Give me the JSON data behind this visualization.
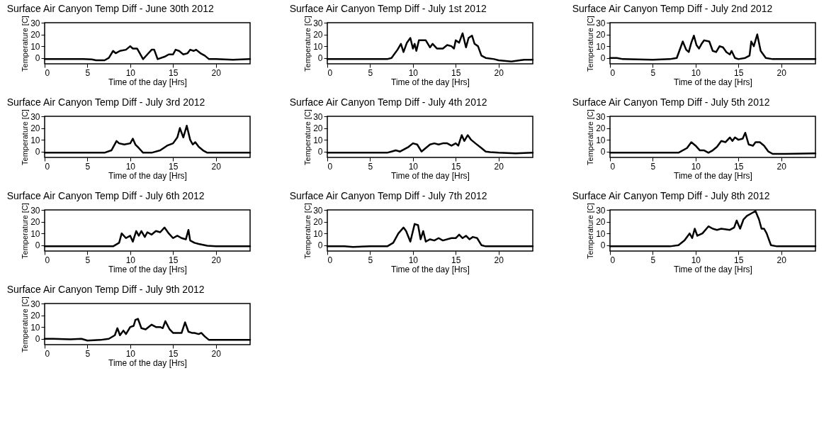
{
  "chart_data": [
    {
      "type": "line",
      "title": "Surface Air Canyon Temp Diff - June 30th 2012",
      "xlabel": "Time of the day [Hrs]",
      "ylabel": "Temperature [C]",
      "xlim": [
        0,
        24
      ],
      "ylim": [
        -5,
        30
      ],
      "xticks": [
        0,
        5,
        10,
        15,
        20
      ],
      "yticks": [
        0,
        10,
        20,
        30
      ],
      "x": [
        0,
        4.5,
        5.5,
        6,
        7,
        7.5,
        8,
        8.3,
        8.8,
        9.5,
        10,
        10.3,
        10.8,
        11.5,
        12,
        12.5,
        12.8,
        13.2,
        14,
        14.5,
        15,
        15.3,
        15.7,
        16.2,
        16.7,
        17,
        17.4,
        17.7,
        18.2,
        18.7,
        19.2,
        20,
        22,
        24
      ],
      "series": [
        {
          "color": "#000000",
          "values": [
            -1,
            -1,
            -1.2,
            -2,
            -2,
            0,
            6,
            4,
            6,
            7,
            10,
            8,
            8,
            -1,
            3,
            7,
            7,
            -1,
            1,
            3,
            3,
            7,
            6,
            3,
            4,
            7,
            6,
            7,
            4,
            2,
            -1,
            -1,
            -1.5,
            -1
          ]
        }
      ]
    },
    {
      "type": "line",
      "title": "Surface Air Canyon Temp Diff - July 1st 2012",
      "xlabel": "Time of the day [Hrs]",
      "ylabel": "Temperature [C]",
      "xlim": [
        0,
        24
      ],
      "ylim": [
        -5,
        30
      ],
      "xticks": [
        0,
        5,
        10,
        15,
        20
      ],
      "yticks": [
        0,
        10,
        20,
        30
      ],
      "x": [
        0,
        7,
        7.5,
        8.2,
        8.6,
        8.9,
        9.3,
        9.7,
        10,
        10.2,
        10.4,
        10.7,
        11.5,
        12,
        12.3,
        12.8,
        13.5,
        14,
        14.5,
        14.8,
        15,
        15.4,
        15.8,
        16.2,
        16.5,
        16.9,
        17.2,
        17.6,
        18,
        18.5,
        19.5,
        20,
        21.5,
        22.5,
        23,
        24
      ],
      "series": [
        {
          "color": "#000000",
          "values": [
            -1,
            -1,
            0,
            7,
            12,
            5,
            13,
            17,
            8,
            12,
            6,
            15,
            15,
            9,
            12,
            8,
            8,
            11,
            10,
            8,
            15,
            13,
            21,
            9,
            17,
            19,
            12,
            10,
            2,
            0,
            -1,
            -2,
            -3,
            -2,
            -1.5,
            -1.5
          ]
        }
      ]
    },
    {
      "type": "line",
      "title": "Surface Air Canyon Temp Diff - July 2nd 2012",
      "xlabel": "Time of the day [Hrs]",
      "ylabel": "Temperature [C]",
      "xlim": [
        0,
        24
      ],
      "ylim": [
        -5,
        30
      ],
      "xticks": [
        0,
        5,
        10,
        15,
        20
      ],
      "yticks": [
        0,
        10,
        20,
        30
      ],
      "x": [
        0,
        0.8,
        1.5,
        5,
        7,
        7.8,
        8.2,
        8.5,
        8.9,
        9.2,
        9.5,
        9.8,
        10.1,
        10.4,
        10.7,
        11,
        11.6,
        12,
        12.4,
        12.8,
        13.2,
        13.6,
        14,
        14.2,
        14.6,
        15,
        15.8,
        16.3,
        16.5,
        16.8,
        17.2,
        17.6,
        18.2,
        19,
        22,
        24
      ],
      "series": [
        {
          "color": "#000000",
          "values": [
            0,
            0,
            -1,
            -1.5,
            -1,
            0,
            8,
            14,
            7,
            5,
            13,
            19,
            11,
            8,
            12,
            15,
            14,
            6,
            5,
            10,
            9,
            5,
            3,
            6,
            0,
            -1,
            0,
            2,
            14,
            10,
            20,
            6,
            0,
            -1,
            -1,
            -1
          ]
        }
      ]
    },
    {
      "type": "line",
      "title": "Surface Air Canyon Temp Diff - July 3rd 2012",
      "xlabel": "Time of the day [Hrs]",
      "ylabel": "Temperature [C]",
      "xlim": [
        0,
        24
      ],
      "ylim": [
        -5,
        30
      ],
      "xticks": [
        0,
        5,
        10,
        15,
        20
      ],
      "yticks": [
        0,
        10,
        20,
        30
      ],
      "x": [
        0,
        7,
        7.8,
        8.4,
        8.7,
        9.3,
        10,
        10.3,
        10.6,
        11,
        11.5,
        12.5,
        13.5,
        14.3,
        15,
        15.5,
        15.8,
        16.2,
        16.6,
        17,
        17.3,
        17.6,
        18,
        18.5,
        19,
        24
      ],
      "series": [
        {
          "color": "#000000",
          "values": [
            -1,
            -1,
            1,
            9,
            7,
            6,
            7,
            11,
            6,
            3,
            -1,
            -1,
            1,
            5,
            7,
            12,
            20,
            12,
            22,
            10,
            6,
            8,
            4,
            1,
            -1,
            -1
          ]
        }
      ]
    },
    {
      "type": "line",
      "title": "Surface Air Canyon Temp Diff - July 4th 2012",
      "xlabel": "Time of the day [Hrs]",
      "ylabel": "Temperature [C]",
      "xlim": [
        0,
        24
      ],
      "ylim": [
        -5,
        30
      ],
      "xticks": [
        0,
        5,
        10,
        15,
        20
      ],
      "yticks": [
        0,
        10,
        20,
        30
      ],
      "x": [
        0,
        7,
        7.5,
        8,
        8.5,
        9,
        9.5,
        10,
        10.5,
        11,
        11.5,
        12,
        12.5,
        13,
        13.5,
        14,
        14.5,
        15,
        15.3,
        15.7,
        16,
        16.4,
        16.8,
        17.3,
        18,
        18.5,
        19,
        20,
        22,
        24
      ],
      "series": [
        {
          "color": "#000000",
          "values": [
            -1,
            -1,
            0,
            1,
            0,
            2,
            4,
            7,
            6,
            0,
            3,
            6,
            7,
            6,
            7,
            7,
            5,
            7,
            5,
            14,
            9,
            14,
            10,
            7,
            3,
            0,
            -0.5,
            -1,
            -1.5,
            -1
          ]
        }
      ]
    },
    {
      "type": "line",
      "title": "Surface Air Canyon Temp Diff - July 5th 2012",
      "xlabel": "Time of the day [Hrs]",
      "ylabel": "Temperature [C]",
      "xlim": [
        0,
        24
      ],
      "ylim": [
        -5,
        30
      ],
      "xticks": [
        0,
        5,
        10,
        15,
        20
      ],
      "yticks": [
        0,
        10,
        20,
        30
      ],
      "x": [
        0,
        8,
        9,
        9.5,
        10,
        10.5,
        11,
        11.5,
        12,
        12.5,
        13,
        13.5,
        14,
        14.3,
        14.6,
        15,
        15.5,
        15.8,
        16.2,
        16.7,
        17,
        17.5,
        18,
        18.5,
        19,
        20.5,
        24
      ],
      "series": [
        {
          "color": "#000000",
          "values": [
            -1,
            -1,
            3,
            8,
            5,
            1,
            1,
            -1,
            1,
            4,
            9,
            8,
            12,
            9,
            12,
            10,
            11,
            16,
            6,
            5,
            8,
            8,
            5,
            0,
            -2,
            -2,
            -1.5
          ]
        }
      ]
    },
    {
      "type": "line",
      "title": "Surface Air Canyon Temp Diff - July 6th 2012",
      "xlabel": "Time of the day [Hrs]",
      "ylabel": "Temperature [C]",
      "xlim": [
        0,
        24
      ],
      "ylim": [
        -5,
        30
      ],
      "xticks": [
        0,
        5,
        10,
        15,
        20
      ],
      "yticks": [
        0,
        10,
        20,
        30
      ],
      "x": [
        0,
        8,
        8.7,
        9,
        9.5,
        10,
        10.3,
        10.7,
        11,
        11.3,
        11.7,
        12,
        12.5,
        13,
        13.5,
        14,
        14.5,
        15,
        15.5,
        16,
        16.5,
        16.8,
        17,
        17.5,
        18,
        19,
        20,
        24
      ],
      "series": [
        {
          "color": "#000000",
          "values": [
            -1,
            -1,
            2,
            10,
            6,
            8,
            3,
            12,
            8,
            12,
            7,
            11,
            9,
            12,
            11,
            15,
            10,
            6,
            8,
            6,
            5,
            13,
            4,
            2,
            1,
            -0.5,
            -1,
            -1
          ]
        }
      ]
    },
    {
      "type": "line",
      "title": "Surface Air Canyon Temp Diff - July 7th 2012",
      "xlabel": "Time of the day [Hrs]",
      "ylabel": "Temperature [C]",
      "xlim": [
        0,
        24
      ],
      "ylim": [
        -5,
        30
      ],
      "xticks": [
        0,
        5,
        10,
        15,
        20
      ],
      "yticks": [
        0,
        10,
        20,
        30
      ],
      "x": [
        0,
        2,
        3,
        5,
        7,
        7.7,
        8.3,
        8.9,
        9.2,
        9.7,
        10.2,
        10.6,
        10.9,
        11.2,
        11.5,
        12,
        12.5,
        13,
        13.5,
        14.5,
        15,
        15.4,
        15.8,
        16.2,
        16.6,
        17,
        17.5,
        18,
        18.5,
        24
      ],
      "series": [
        {
          "color": "#000000",
          "values": [
            -1,
            -1,
            -1.5,
            -1,
            -1,
            2,
            10,
            15,
            12,
            3,
            18,
            17,
            5,
            12,
            3,
            5,
            4,
            6,
            4,
            6,
            6,
            9,
            6,
            8,
            5,
            7,
            6,
            0,
            -1,
            -1
          ]
        }
      ]
    },
    {
      "type": "line",
      "title": "Surface Air Canyon Temp Diff - July 8th 2012",
      "xlabel": "Time of the day [Hrs]",
      "ylabel": "Temperature [C]",
      "xlim": [
        0,
        24
      ],
      "ylim": [
        -5,
        30
      ],
      "xticks": [
        0,
        5,
        10,
        15,
        20
      ],
      "yticks": [
        0,
        10,
        20,
        30
      ],
      "x": [
        0,
        7,
        8,
        8.7,
        9.3,
        9.6,
        9.9,
        10.2,
        10.8,
        11.5,
        12,
        12.5,
        13,
        14,
        14.5,
        14.8,
        15.2,
        15.6,
        16,
        16.5,
        17,
        17.4,
        17.7,
        18,
        18.3,
        18.8,
        19.5,
        24
      ],
      "series": [
        {
          "color": "#000000",
          "values": [
            -1,
            -1,
            0,
            4,
            10,
            6,
            14,
            8,
            10,
            16,
            14,
            13,
            14,
            13,
            15,
            21,
            14,
            22,
            25,
            27,
            29,
            22,
            14,
            14,
            10,
            0,
            -1,
            -1
          ]
        }
      ]
    },
    {
      "type": "line",
      "title": "Surface Air Canyon Temp Diff - July 9th 2012",
      "xlabel": "Time of the day [Hrs]",
      "ylabel": "Temperature [C]",
      "xlim": [
        0,
        24
      ],
      "ylim": [
        -5,
        30
      ],
      "xticks": [
        0,
        5,
        10,
        15,
        20
      ],
      "yticks": [
        0,
        10,
        20,
        30
      ],
      "x": [
        0,
        1,
        3,
        4.3,
        5,
        6.5,
        7.5,
        8.2,
        8.5,
        8.8,
        9.2,
        9.5,
        10,
        10.4,
        10.6,
        10.9,
        11.3,
        11.8,
        12.5,
        13,
        13.5,
        13.8,
        14.1,
        14.6,
        15,
        16,
        16.4,
        16.8,
        17.2,
        17.5,
        18,
        18.3,
        18.7,
        19.2,
        22,
        24
      ],
      "series": [
        {
          "color": "#000000",
          "values": [
            0,
            0,
            -0.5,
            0,
            -1.5,
            -1,
            0,
            3,
            9,
            3,
            7,
            4,
            10,
            11,
            16,
            17,
            9,
            8,
            12,
            10,
            10,
            9,
            15,
            8,
            5,
            5,
            14,
            6,
            5,
            5,
            4,
            5,
            2,
            -1,
            -1,
            -1
          ]
        }
      ]
    }
  ]
}
